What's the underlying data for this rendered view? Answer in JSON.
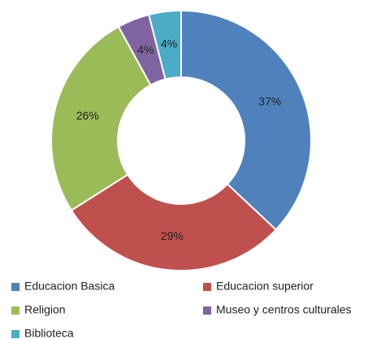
{
  "chart_data": {
    "type": "donut",
    "categories": [
      "Educacion Basica",
      "Educacion superior",
      "Religion",
      "Museo y centros culturales",
      "Biblioteca"
    ],
    "values": [
      37,
      29,
      26,
      4,
      4
    ],
    "value_labels": [
      "37%",
      "29%",
      "26%",
      "4%",
      "4%"
    ],
    "colors": [
      "#4f81bd",
      "#c0504d",
      "#9bbb59",
      "#8064a2",
      "#4bacc6"
    ],
    "legend": "bottom"
  }
}
